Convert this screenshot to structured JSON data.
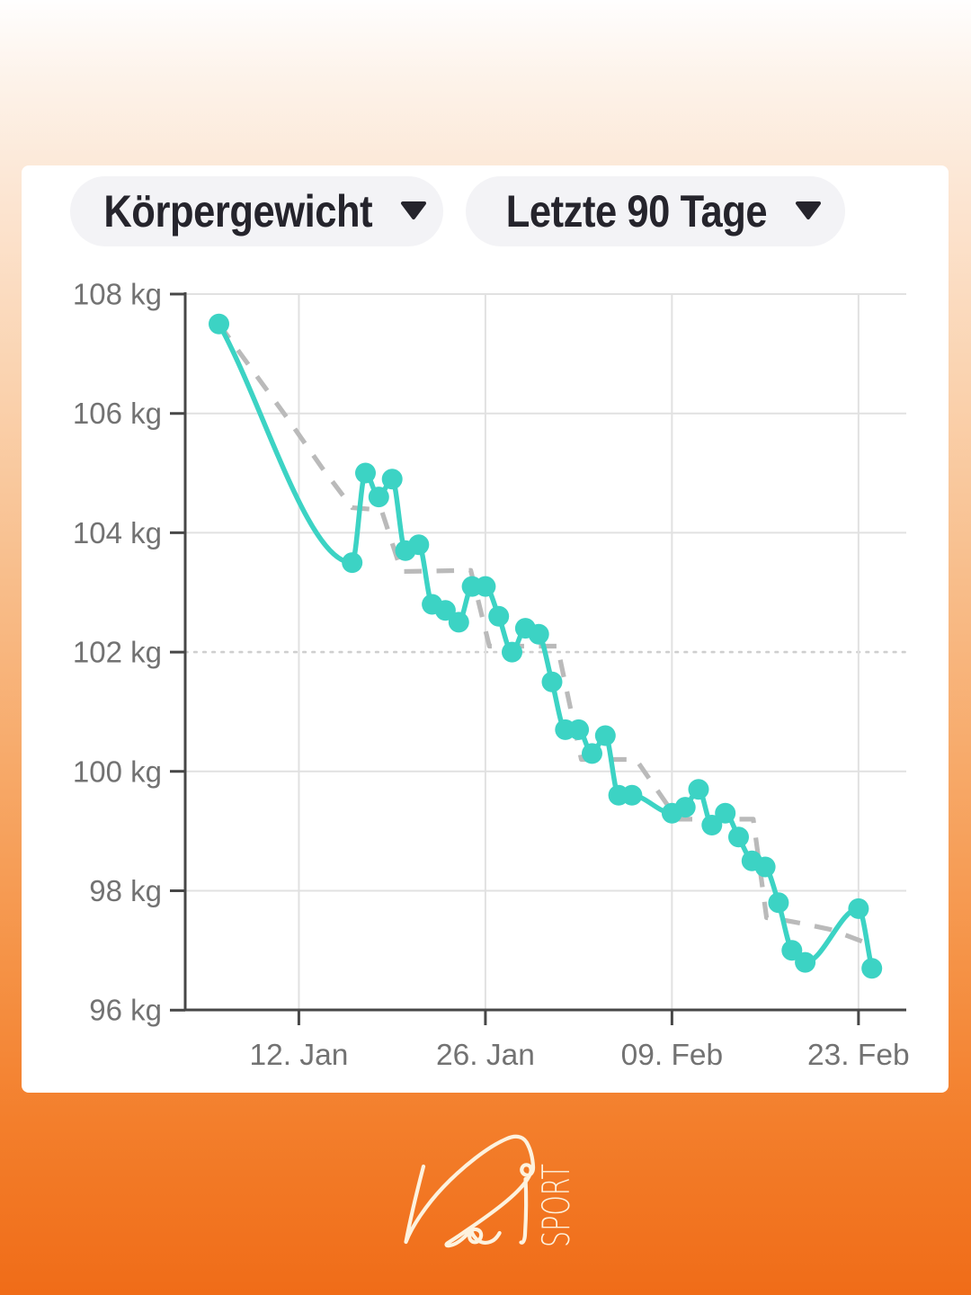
{
  "controls": {
    "metric_dropdown": {
      "label": "Körpergewicht"
    },
    "range_dropdown": {
      "label": "Letzte 90 Tage"
    }
  },
  "logo": {
    "brand": "Ka",
    "sport_text": "SPORT"
  },
  "colors": {
    "line": "#3cd3c4",
    "marker": "#3cd3c4",
    "trend": "#bababa",
    "grid": "#e1e1e1",
    "grid_dotted": "#cfcfcf",
    "axis": "#474747",
    "tick_label": "#727272",
    "pill_bg": "#f3f3f6",
    "pill_text": "#25242c",
    "card_bg": "#ffffff",
    "logo_stroke": "#fdf2de"
  },
  "chart_data": {
    "type": "line",
    "unit": "kg",
    "ylim": [
      96,
      108
    ],
    "grid": true,
    "legend": "none",
    "y_ticks": [
      "108 kg",
      "106 kg",
      "104 kg",
      "102 kg",
      "100 kg",
      "98 kg",
      "96 kg"
    ],
    "y_tick_values": [
      108,
      106,
      104,
      102,
      100,
      98,
      96
    ],
    "dotted_gridline_value": 102,
    "x_ticks": [
      {
        "label": "12. Jan",
        "day": 6
      },
      {
        "label": "26. Jan",
        "day": 20
      },
      {
        "label": "09. Feb",
        "day": 34
      },
      {
        "label": "23. Feb",
        "day": 48
      }
    ],
    "series": [
      {
        "name": "Körpergewicht",
        "style": "solid-markers",
        "points": [
          [
            0,
            107.5
          ],
          [
            10,
            103.5
          ],
          [
            11,
            105.0
          ],
          [
            12,
            104.6
          ],
          [
            13,
            104.9
          ],
          [
            14,
            103.7
          ],
          [
            15,
            103.8
          ],
          [
            16,
            102.8
          ],
          [
            17,
            102.7
          ],
          [
            18,
            102.5
          ],
          [
            19,
            103.1
          ],
          [
            20,
            103.1
          ],
          [
            21,
            102.6
          ],
          [
            22,
            102.0
          ],
          [
            23,
            102.4
          ],
          [
            24,
            102.3
          ],
          [
            25,
            101.5
          ],
          [
            26,
            100.7
          ],
          [
            27,
            100.7
          ],
          [
            28,
            100.3
          ],
          [
            29,
            100.6
          ],
          [
            30,
            99.6
          ],
          [
            31,
            99.6
          ],
          [
            34,
            99.3
          ],
          [
            35,
            99.4
          ],
          [
            36,
            99.7
          ],
          [
            37,
            99.1
          ],
          [
            38,
            99.3
          ],
          [
            39,
            98.9
          ],
          [
            40,
            98.5
          ],
          [
            41,
            98.4
          ],
          [
            42,
            97.8
          ],
          [
            43,
            97.0
          ],
          [
            44,
            96.8
          ],
          [
            48,
            97.7
          ],
          [
            49,
            96.7
          ]
        ]
      },
      {
        "name": "Trend",
        "style": "dashed",
        "points": [
          [
            0,
            107.5
          ],
          [
            2.6,
            106.7
          ],
          [
            5.2,
            105.9
          ],
          [
            7.7,
            105.1
          ],
          [
            10,
            104.42
          ],
          [
            12.2,
            104.38
          ],
          [
            13.7,
            103.35
          ],
          [
            18.9,
            103.37
          ],
          [
            20.3,
            102.1
          ],
          [
            25.4,
            102.1
          ],
          [
            27.2,
            100.2
          ],
          [
            31.3,
            100.2
          ],
          [
            34.4,
            99.2
          ],
          [
            40.1,
            99.2
          ],
          [
            41.1,
            97.55
          ],
          [
            42.6,
            97.5
          ],
          [
            43.8,
            97.45
          ],
          [
            45.9,
            97.35
          ],
          [
            48.3,
            97.15
          ]
        ]
      }
    ]
  }
}
